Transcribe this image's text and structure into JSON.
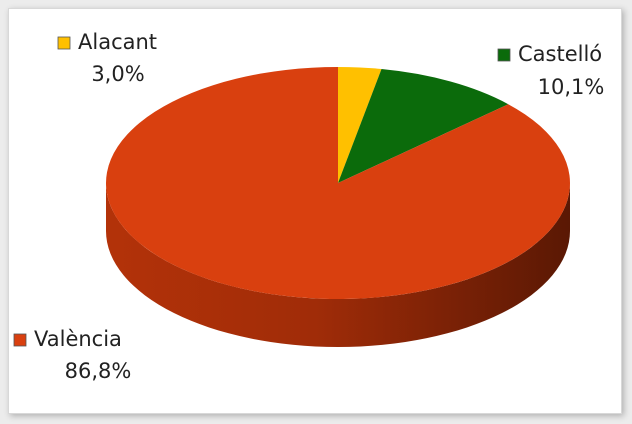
{
  "chart_data": {
    "type": "pie3d",
    "categories": [
      "Alacant",
      "Castelló",
      "València"
    ],
    "values": [
      3.0,
      10.1,
      86.8
    ],
    "value_labels": [
      "3,0%",
      "10,1%",
      "86,8%"
    ],
    "colors": [
      "#ffc000",
      "#0b6b0b",
      "#d9400f"
    ]
  }
}
